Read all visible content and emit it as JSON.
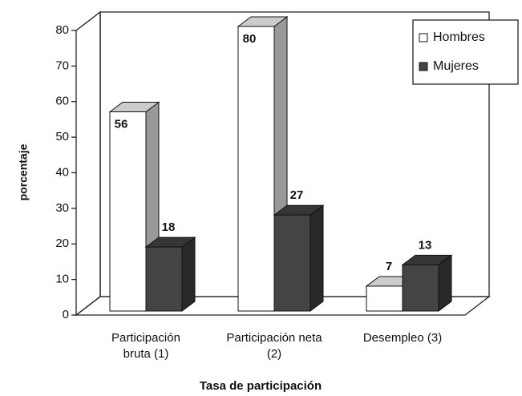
{
  "chart_data": {
    "type": "bar3d",
    "title_x": "Tasa de participación",
    "ylabel": "porcentaje",
    "categories": [
      "Participación bruta (1)",
      "Participación neta (2)",
      "Desempleo (3)"
    ],
    "series": [
      {
        "name": "Hombres",
        "color": "#ffffff",
        "values": [
          56,
          80,
          7
        ]
      },
      {
        "name": "Mujeres",
        "color": "#444444",
        "values": [
          18,
          27,
          13
        ]
      }
    ],
    "ylim": [
      0,
      80
    ],
    "yticks": [
      0,
      10,
      20,
      30,
      40,
      50,
      60,
      70,
      80
    ],
    "legend": "top-right"
  }
}
